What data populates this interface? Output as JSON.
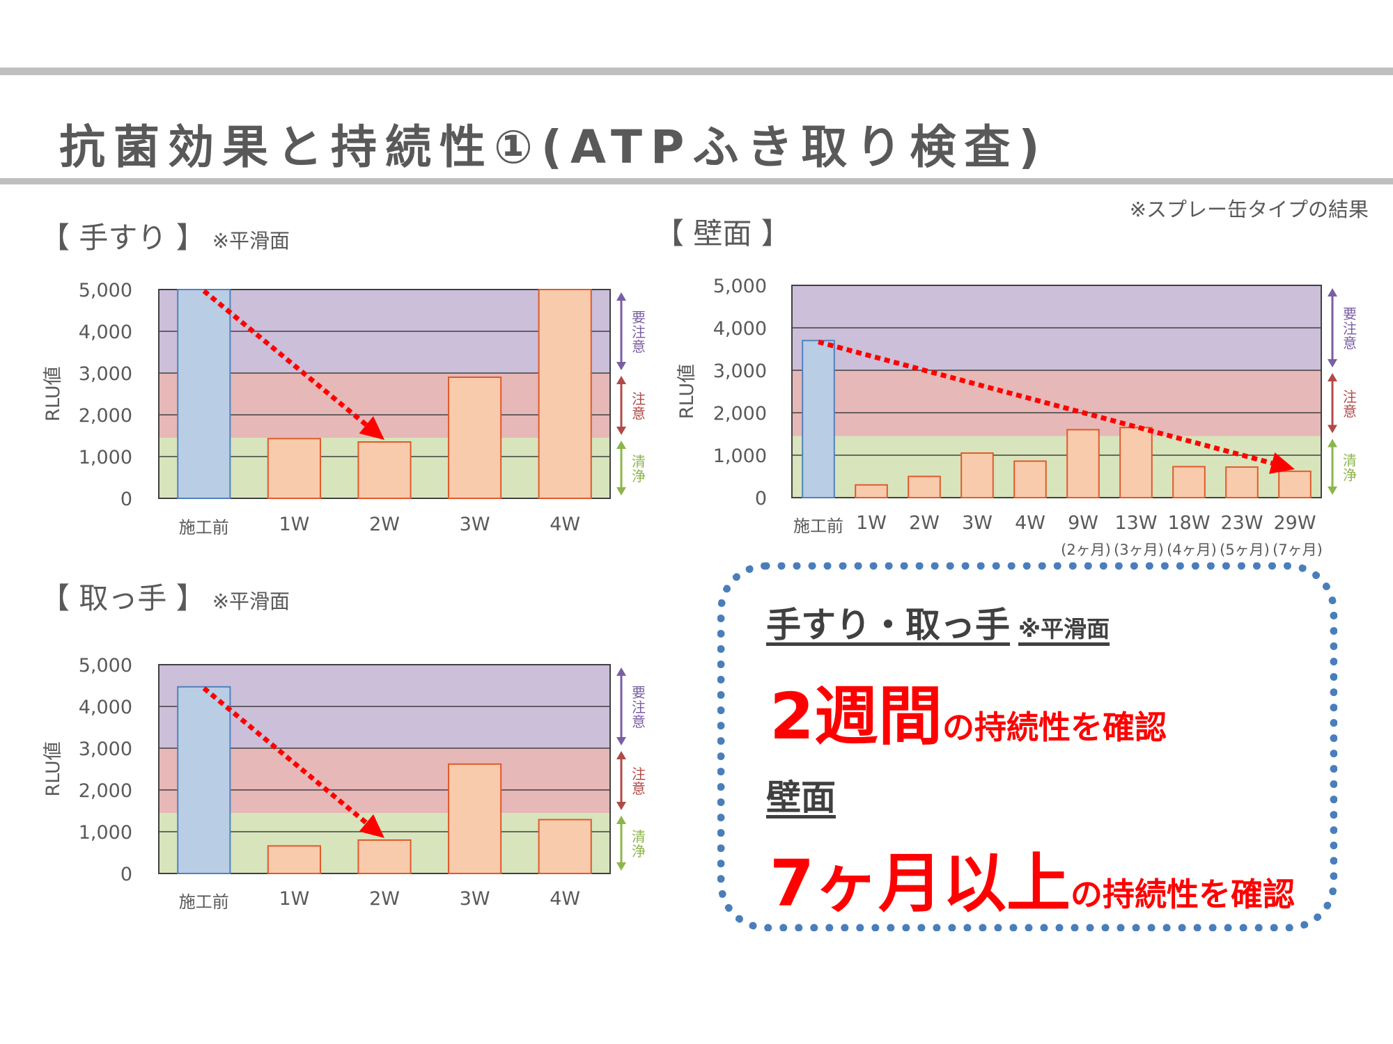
{
  "title": "抗菌効果と持続性①(ATPふき取り検査)",
  "note": "※スプレー缶タイプの結果",
  "sections": {
    "handrail": {
      "label": "【 手すり 】",
      "sub": "※平滑面"
    },
    "wall": {
      "label": "【 壁面 】"
    },
    "handle": {
      "label": "【 取っ手 】",
      "sub": "※平滑面"
    }
  },
  "zones": [
    {
      "label": "要注意",
      "color": "#cbbfd9",
      "arrow": "#7a5ea3"
    },
    {
      "label": "注意",
      "color": "#e6b8b7",
      "arrow": "#b04a48"
    },
    {
      "label": "清浄",
      "color": "#d8e4bc",
      "arrow": "#8eb54a"
    }
  ],
  "colors": {
    "before_bar": "#b9cde5",
    "before_border": "#4f81bd",
    "after_bar": "#f8cbad",
    "after_border": "#e05a2b",
    "trend": "#ff0000"
  },
  "chart_data": [
    {
      "name": "手すり",
      "type": "bar",
      "ylabel": "RLU値",
      "ylim": [
        0,
        5000
      ],
      "yticks": [
        "0",
        "1,000",
        "2,000",
        "3,000",
        "4,000",
        "5,000"
      ],
      "categories": [
        "施工前",
        "1W",
        "2W",
        "3W",
        "4W"
      ],
      "values": [
        5000,
        1430,
        1350,
        2900,
        5000
      ],
      "zone_bounds": [
        1450,
        3000,
        5000
      ],
      "trend": {
        "from": 0,
        "to": 2
      }
    },
    {
      "name": "壁面",
      "type": "bar",
      "ylabel": "RLU値",
      "ylim": [
        0,
        5000
      ],
      "yticks": [
        "0",
        "1,000",
        "2,000",
        "3,000",
        "4,000",
        "5,000"
      ],
      "categories": [
        "施工前",
        "1W",
        "2W",
        "3W",
        "4W",
        "9W",
        "13W",
        "18W",
        "23W",
        "29W"
      ],
      "sublabels": [
        "",
        "",
        "",
        "",
        "",
        "(2ヶ月)",
        "(3ヶ月)",
        "(4ヶ月)",
        "(5ヶ月)",
        "(7ヶ月)"
      ],
      "values": [
        3700,
        300,
        500,
        1050,
        860,
        1600,
        1650,
        730,
        720,
        620
      ],
      "zone_bounds": [
        1450,
        3000,
        5000
      ],
      "trend": {
        "from": 0,
        "to": 9
      }
    },
    {
      "name": "取っ手",
      "type": "bar",
      "ylabel": "RLU値",
      "ylim": [
        0,
        5000
      ],
      "yticks": [
        "0",
        "1,000",
        "2,000",
        "3,000",
        "4,000",
        "5,000"
      ],
      "categories": [
        "施工前",
        "1W",
        "2W",
        "3W",
        "4W"
      ],
      "values": [
        4470,
        660,
        800,
        2620,
        1290
      ],
      "zone_bounds": [
        1450,
        3000,
        5000
      ],
      "trend": {
        "from": 0,
        "to": 2
      }
    }
  ],
  "summary": {
    "head1": "手すり・取っ手",
    "head1_sub": "※平滑面",
    "big1": "2週間",
    "rest1": "の持続性を確認",
    "head2": "壁面",
    "big2": "7ヶ月以上",
    "rest2": "の持続性を確認"
  }
}
